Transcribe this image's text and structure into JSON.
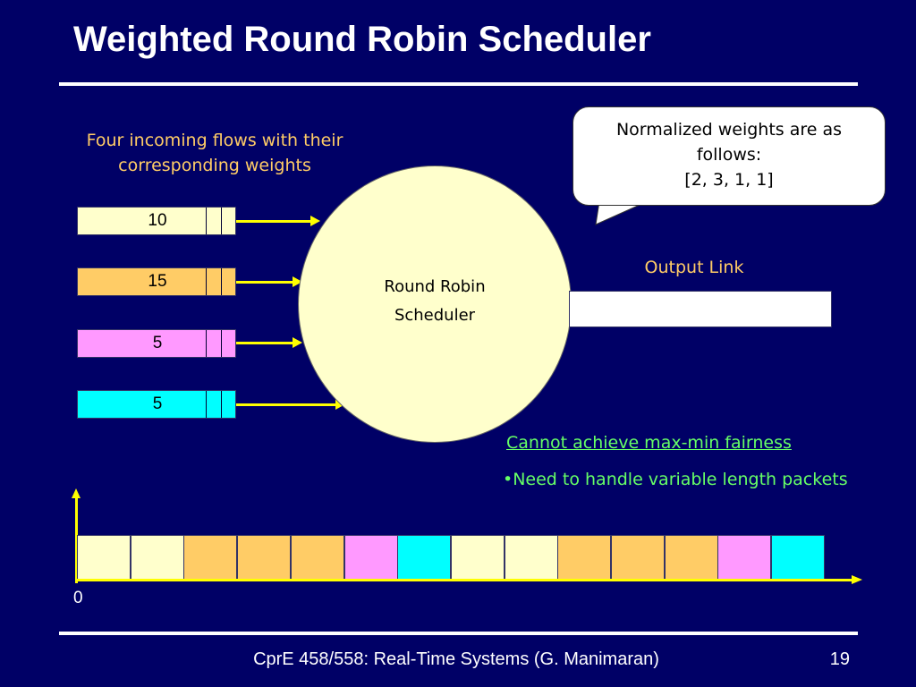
{
  "slide": {
    "title": "Weighted Round Robin Scheduler",
    "page_number": "19",
    "footer": "CprE 458/558: Real-Time Systems (G. Manimaran)"
  },
  "flows": {
    "caption": "Four incoming flows with their corresponding weights",
    "items": [
      {
        "weight": "10",
        "color": "#ffffcc"
      },
      {
        "weight": "15",
        "color": "#ffcc66"
      },
      {
        "weight": "5",
        "color": "#ff99ff"
      },
      {
        "weight": "5",
        "color": "#00ffff"
      }
    ]
  },
  "scheduler": {
    "line1": "Round Robin",
    "line2": "Scheduler"
  },
  "callout": {
    "line1": "Normalized weights are as",
    "line2": "follows:",
    "line3": "[2, 3, 1, 1]"
  },
  "output": {
    "label": "Output Link"
  },
  "notes": {
    "note1": "Cannot achieve max-min fairness",
    "note2": "•Need to handle variable length packets"
  },
  "timeline": {
    "origin": "0",
    "cells": [
      "#ffffcc",
      "#ffffcc",
      "#ffcc66",
      "#ffcc66",
      "#ffcc66",
      "#ff99ff",
      "#00ffff",
      "#ffffcc",
      "#ffffcc",
      "#ffcc66",
      "#ffcc66",
      "#ffcc66",
      "#ff99ff",
      "#00ffff"
    ]
  }
}
